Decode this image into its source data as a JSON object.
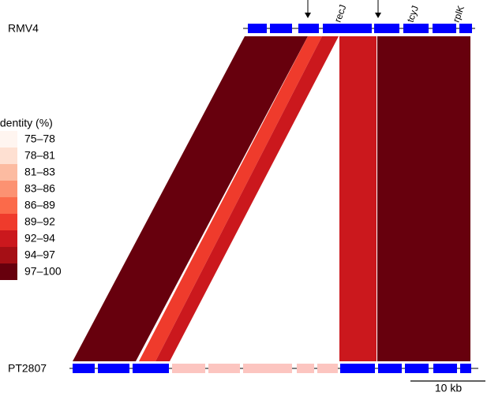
{
  "genomes": [
    {
      "name": "RMV4",
      "genes": [
        "recJ",
        "tcyJ",
        "rplK"
      ]
    },
    {
      "name": "PT2807"
    }
  ],
  "legend": {
    "title": "Identity (%)",
    "items": [
      {
        "label": "75–78",
        "color": "#fff5f0"
      },
      {
        "label": "78–81",
        "color": "#fee0d2"
      },
      {
        "label": "81–83",
        "color": "#fcbba1"
      },
      {
        "label": "83–86",
        "color": "#fc9272"
      },
      {
        "label": "86–89",
        "color": "#fb6a4a"
      },
      {
        "label": "89–92",
        "color": "#ef3b2c"
      },
      {
        "label": "92–94",
        "color": "#cb181d"
      },
      {
        "label": "94–97",
        "color": "#a50f15"
      },
      {
        "label": "97–100",
        "color": "#67000d"
      }
    ]
  },
  "scale_bar": "10 kb"
}
